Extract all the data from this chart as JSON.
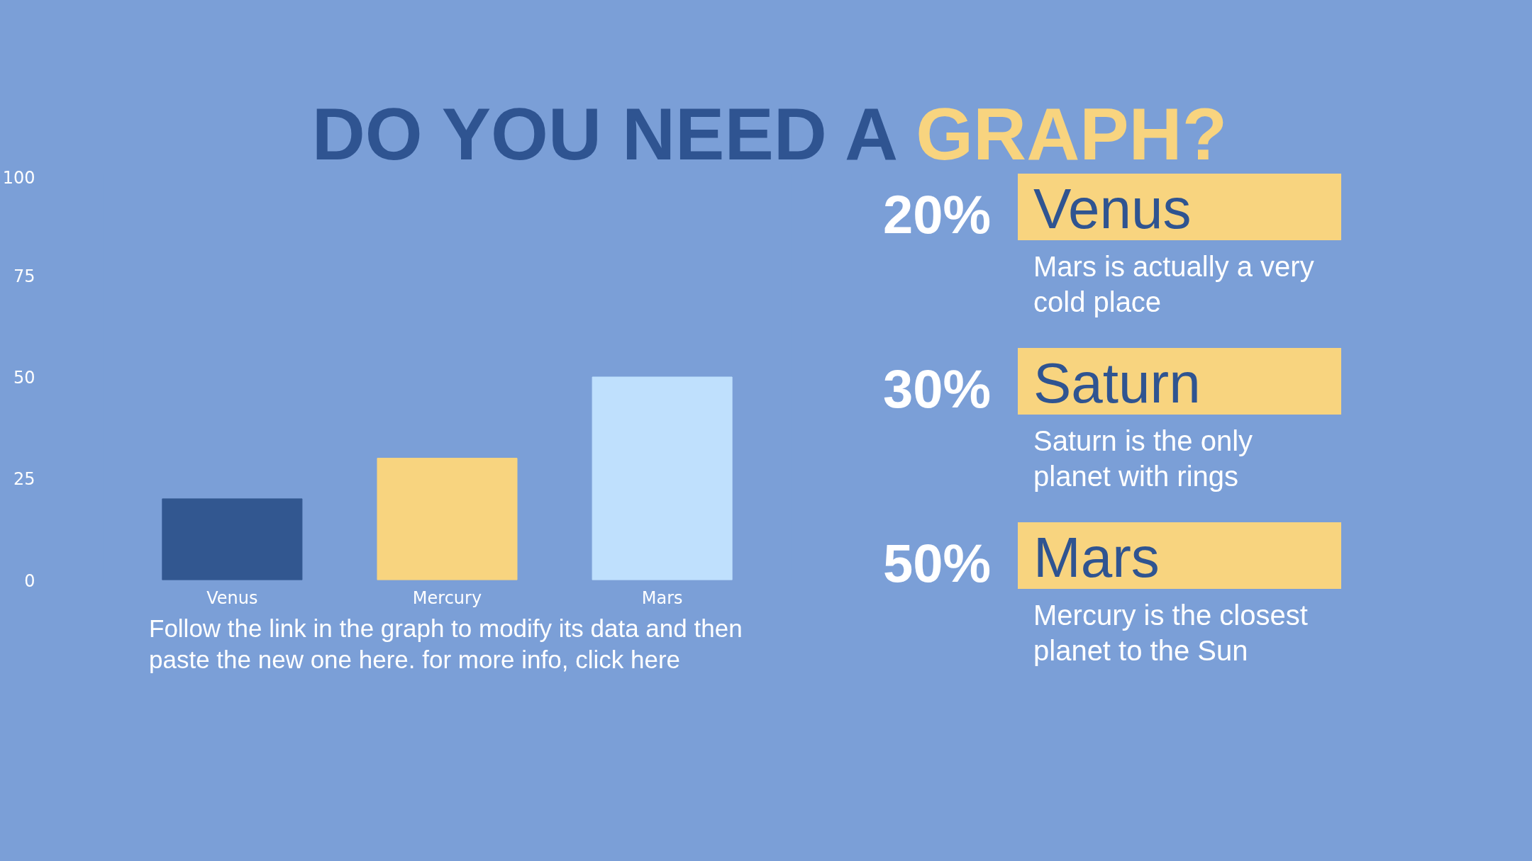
{
  "chart_data": [
    {
      "type": "bar",
      "title": "DO YOU NEED A GRAPH?",
      "categories": [
        "Venus",
        "Mercury",
        "Mars"
      ],
      "values": [
        20,
        30,
        50
      ],
      "colors": [
        "#325790",
        "#f8d47f",
        "#bfe0fd"
      ],
      "ylim": [
        0,
        100
      ],
      "yticks": [
        0,
        25,
        50,
        75,
        100
      ],
      "grid": false,
      "annotations": [
        "Follow the link in the graph to modify its data and then paste the new one here. for more info, click here"
      ]
    },
    {
      "type": "other",
      "annotations": [
        "20%",
        "Venus",
        "Mars is actually a very cold place",
        "30%",
        "Saturn",
        "Saturn is the only planet with rings",
        "50%",
        "Mars",
        "Mercury is the closest planet to the Sun"
      ]
    }
  ]
}
